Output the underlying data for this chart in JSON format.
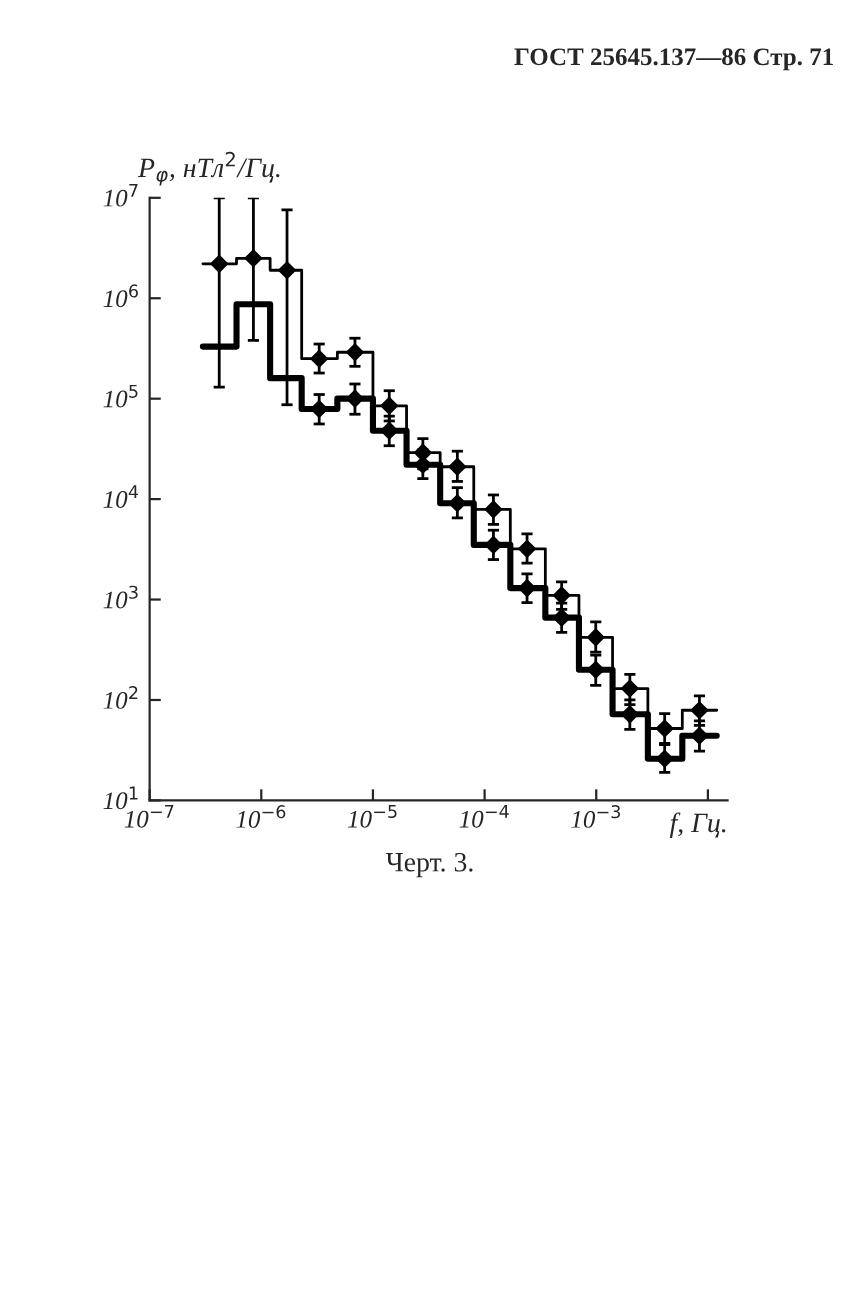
{
  "chart_data": {
    "type": "step",
    "title": "ГОСТ 25645.137—86 Стр. 71",
    "ylabel": "P$_{φ}$, нТл$^{2}$/Гц.",
    "xlabel": "f, Гц.",
    "annotations": [
      "Черт. 3."
    ],
    "log": "xy",
    "series": [
      {
        "color": "#000000",
        "x": [
          3e-07,
          6e-07,
          1.2e-06,
          2.3e-06,
          4.8e-06,
          1e-05,
          2e-05,
          4e-05,
          8e-05,
          0.00017,
          0.00035,
          0.0007,
          0.0014,
          0.0029,
          0.0059,
          0.012
        ],
        "values": [
          2200000.0,
          2500000.0,
          1900000.0,
          250000.0,
          290000.0,
          85000.0,
          29000.0,
          21000.0,
          7900.0,
          3200.0,
          1100.0,
          420,
          130,
          52,
          79,
          79
        ]
      },
      {
        "color": "#000000",
        "x": [
          3e-07,
          6e-07,
          1.2e-06,
          2.3e-06,
          4.8e-06,
          1e-05,
          2e-05,
          4e-05,
          8e-05,
          0.00017,
          0.00035,
          0.0007,
          0.0014,
          0.0029,
          0.0059,
          0.012
        ],
        "values": [
          330000.0,
          870000.0,
          160000.0,
          79000.0,
          100000.0,
          48000.0,
          22000.0,
          9100.0,
          3500.0,
          1300.0,
          660,
          200,
          72,
          26,
          44,
          44
        ]
      },
      {
        "type": "scatter",
        "marker": "diamond",
        "color": "#000000",
        "x": [
          4.2e-07,
          8.5e-07,
          1.7e-06,
          3.3e-06,
          6.9e-06,
          1.4e-05,
          2.8e-05,
          5.7e-05,
          0.00012,
          0.00024,
          0.00049,
          0.00099,
          0.002,
          0.0041,
          0.0084
        ],
        "values": [
          2200000.0,
          2500000.0,
          1900000.0,
          250000.0,
          290000.0,
          85000.0,
          29000.0,
          21000.0,
          7900.0,
          3200.0,
          1100.0,
          420,
          130,
          52,
          79
        ],
        "errors": [
          [
            130000.0,
            10000000.0
          ],
          [
            380000.0,
            10000000.0
          ],
          [
            87000.0,
            7600000.0
          ],
          [
            180000.0,
            350000.0
          ],
          [
            210000.0,
            400000.0
          ],
          [
            60000.0,
            120000.0
          ],
          [
            20000.0,
            40000.0
          ],
          [
            15000.0,
            30000.0
          ],
          [
            5600.0,
            11000.0
          ],
          [
            2300.0,
            4500.0
          ],
          [
            800,
            1500
          ],
          [
            300,
            600
          ],
          [
            90,
            180
          ],
          [
            37,
            73
          ],
          [
            56,
            110
          ]
        ]
      },
      {
        "type": "scatter",
        "marker": "diamond",
        "color": "#000000",
        "x": [
          3.3e-06,
          6.9e-06,
          1.4e-05,
          2.8e-05,
          5.7e-05,
          0.00012,
          0.00024,
          0.00049,
          0.00099,
          0.002,
          0.0041,
          0.0084
        ],
        "values": [
          79000.0,
          100000.0,
          48000.0,
          22000.0,
          9100.0,
          3500.0,
          1300.0,
          660,
          200,
          72,
          26,
          44
        ],
        "errors": [
          [
            56000.0,
            110000.0
          ],
          [
            70000.0,
            140000.0
          ],
          [
            34000.0,
            67000.0
          ],
          [
            16000.0,
            31000.0
          ],
          [
            6500.0,
            13000.0
          ],
          [
            2500.0,
            4900.0
          ],
          [
            930,
            1800
          ],
          [
            470,
            920
          ],
          [
            140,
            280
          ],
          [
            51,
            100
          ],
          [
            19,
            36
          ],
          [
            31,
            62
          ]
        ]
      }
    ],
    "xlim": [
      1e-07,
      0.015
    ],
    "ylim": [
      10,
      10000000.0
    ],
    "xticks": [
      {
        "value": 1e-07,
        "label": "10$^{−7}$"
      },
      {
        "value": 1e-06,
        "label": "10$^{−6}$"
      },
      {
        "value": 1e-05,
        "label": "10$^{−5}$"
      },
      {
        "value": 0.0001,
        "label": "10$^{−4}$"
      },
      {
        "value": 0.001,
        "label": "10$^{−3}$"
      },
      {
        "value": 0.01,
        "label": null
      }
    ],
    "yticks": [
      {
        "value": 10,
        "label": "10$^{1}$"
      },
      {
        "value": 100,
        "label": "10$^{2}$"
      },
      {
        "value": 1000,
        "label": "10$^{3}$"
      },
      {
        "value": 10000,
        "label": "10$^{4}$"
      },
      {
        "value": 100000,
        "label": "10$^{5}$"
      },
      {
        "value": 1000000,
        "label": "10$^{6}$"
      },
      {
        "value": 10000000,
        "label": "10$^{7}$"
      }
    ],
    "grid": false,
    "legend": false
  }
}
